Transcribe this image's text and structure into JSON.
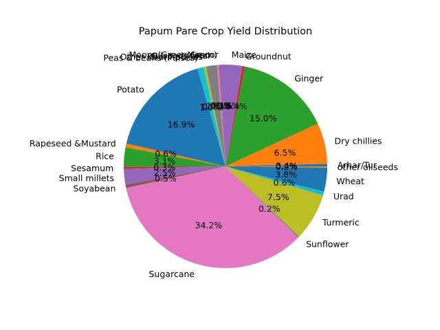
{
  "chart_data": {
    "type": "pie",
    "title": "Papum Pare Crop Yield Distribution",
    "start_angle_deg": 0,
    "direction": "counterclockwise",
    "slices": [
      {
        "label": "Arhar/Tur",
        "value": 0.4,
        "pct_text": "0.4%",
        "color": "#1f77b4"
      },
      {
        "label": "Dry chillies",
        "value": 6.5,
        "pct_text": "6.5%",
        "color": "#ff7f0e"
      },
      {
        "label": "Ginger",
        "value": 15.0,
        "pct_text": "15.0%",
        "color": "#2ca02c"
      },
      {
        "label": "Groundnut",
        "value": 0.4,
        "pct_text": "0.4%",
        "color": "#d62728"
      },
      {
        "label": "Maize",
        "value": 3.6,
        "pct_text": "3.6%",
        "color": "#9467bd"
      },
      {
        "label": "Masoor",
        "value": 0.1,
        "pct_text": "0.1%",
        "color": "#8c564b"
      },
      {
        "label": "Moong(Green Gram)",
        "value": 0.3,
        "pct_text": "0.3%",
        "color": "#e377c2"
      },
      {
        "label": "Oilseeds total",
        "value": 1.7,
        "pct_text": "1.7%",
        "color": "#7f7f7f"
      },
      {
        "label": "Other Kharif pulses",
        "value": 0.4,
        "pct_text": "0.4%",
        "color": "#bcbd22"
      },
      {
        "label": "Peas & beans (Pulses)",
        "value": 1.0,
        "pct_text": "1.0%",
        "color": "#17becf"
      },
      {
        "label": "Potato",
        "value": 16.9,
        "pct_text": "16.9%",
        "color": "#1f77b4"
      },
      {
        "label": "Rapeseed &Mustard",
        "value": 0.6,
        "pct_text": "0.6%",
        "color": "#ff7f0e"
      },
      {
        "label": "Rice",
        "value": 3.1,
        "pct_text": "3.1%",
        "color": "#2ca02c"
      },
      {
        "label": "Sesamum",
        "value": 0.3,
        "pct_text": "0.3%",
        "color": "#d62728"
      },
      {
        "label": "Small millets",
        "value": 2.5,
        "pct_text": "2.5%",
        "color": "#9467bd"
      },
      {
        "label": "Soyabean",
        "value": 0.5,
        "pct_text": "0.5%",
        "color": "#8c564b"
      },
      {
        "label": "Sugarcane",
        "value": 34.2,
        "pct_text": "34.2%",
        "color": "#e377c2"
      },
      {
        "label": "Sunflower",
        "value": 0.2,
        "pct_text": "0.2%",
        "color": "#7f7f7f"
      },
      {
        "label": "Turmeric",
        "value": 7.5,
        "pct_text": "7.5%",
        "color": "#bcbd22"
      },
      {
        "label": "Urad",
        "value": 0.6,
        "pct_text": "0.6%",
        "color": "#17becf"
      },
      {
        "label": "Wheat",
        "value": 3.8,
        "pct_text": "3.8%",
        "color": "#1f77b4"
      },
      {
        "label": "other oilseeds",
        "value": 0.2,
        "pct_text": "0.2%",
        "color": "#ff7f0e"
      }
    ]
  }
}
